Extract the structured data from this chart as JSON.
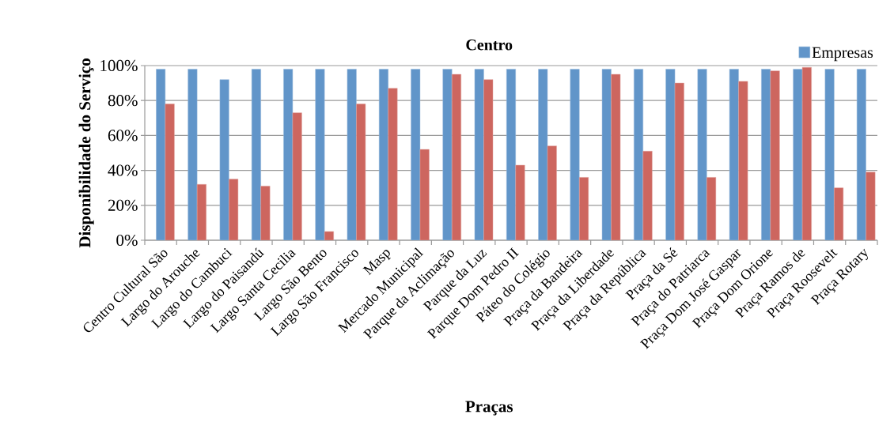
{
  "chart_data": {
    "type": "bar",
    "title": "Centro",
    "xlabel": "Praças",
    "ylabel": "Disponibilidade do Serviço",
    "categories": [
      "Centro Cultural São",
      "Largo do Arouche",
      "Largo do Cambuci",
      "Largo do Paisandú",
      "Largo Santa Cecilia",
      "Largo São Bento",
      "Largo São Francisco",
      "Masp",
      "Mercado Municipal",
      "Parque da Aclimação",
      "Parque da Luz",
      "Parque Dom Pedro II",
      "Páteo do Colégio",
      "Praça da Bandeira",
      "Praça da Liberdade",
      "Praça da República",
      "Praça da Sé",
      "Praça do Patriarca",
      "Praça Dom José Gaspar",
      "Praça Dom Orione",
      "Praça Ramos de",
      "Praça Roosevelt",
      "Praça Rotary"
    ],
    "series": [
      {
        "name": "Empresas",
        "color": "#6195c9",
        "values": [
          98,
          98,
          92,
          98,
          98,
          98,
          98,
          98,
          98,
          98,
          98,
          98,
          98,
          98,
          98,
          98,
          98,
          98,
          98,
          98,
          98,
          98,
          98
        ]
      },
      {
        "color": "#cd665f",
        "values": [
          78,
          32,
          35,
          31,
          73,
          5,
          78,
          87,
          52,
          95,
          92,
          43,
          54,
          36,
          95,
          51,
          90,
          36,
          91,
          97,
          99,
          30,
          39
        ]
      }
    ],
    "ylim": [
      0,
      100
    ],
    "yticks": [
      {
        "value": 0,
        "label": "0%"
      },
      {
        "value": 20,
        "label": "20%"
      },
      {
        "value": 40,
        "label": "40%"
      },
      {
        "value": 60,
        "label": "60%"
      },
      {
        "value": 80,
        "label": "80%"
      },
      {
        "value": 100,
        "label": "100%"
      }
    ],
    "grid": "y",
    "legend": "top right"
  }
}
